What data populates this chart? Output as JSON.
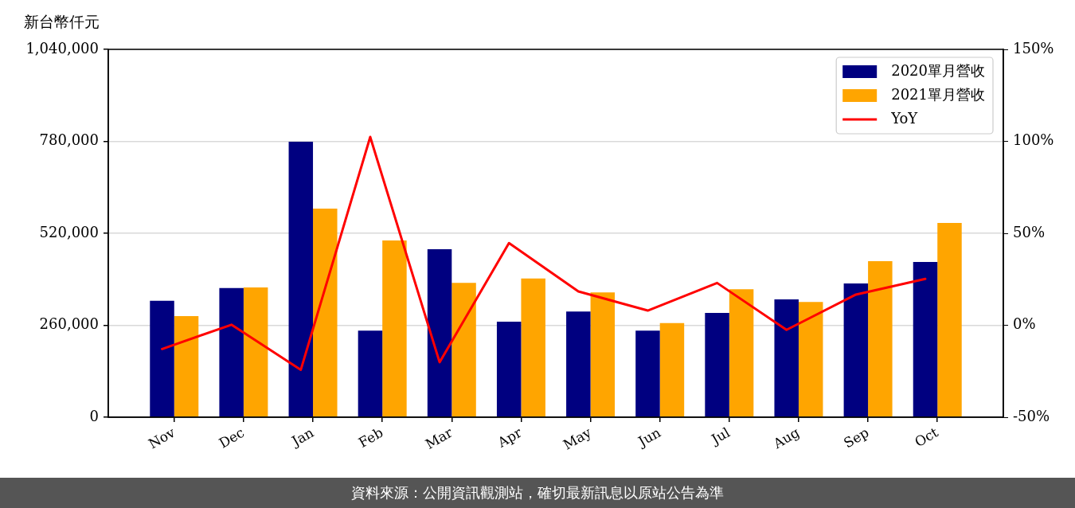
{
  "chart_data": {
    "type": "bar",
    "ylabel": "新台幣仟元",
    "categories": [
      "Nov",
      "Dec",
      "Jan",
      "Feb",
      "Mar",
      "Apr",
      "May",
      "Jun",
      "Jul",
      "Aug",
      "Sep",
      "Oct"
    ],
    "series": [
      {
        "name": "2020單月營收",
        "color": "#000080",
        "values": [
          329000,
          365000,
          779000,
          245000,
          475000,
          270000,
          299000,
          245000,
          295000,
          333000,
          378000,
          439000
        ]
      },
      {
        "name": "2021單月營收",
        "color": "#ffa500",
        "values": [
          286000,
          367000,
          590000,
          500000,
          380000,
          392000,
          353000,
          266000,
          362000,
          326000,
          441000,
          549000
        ]
      },
      {
        "name": "YoY",
        "type": "line",
        "axis": "y2",
        "color": "#ff0000",
        "values": [
          -12.9,
          0.3,
          -24.2,
          102.4,
          -20.1,
          44.7,
          18.4,
          8.0,
          23.0,
          -2.5,
          16.7,
          25.2
        ]
      }
    ],
    "ylim": [
      0,
      1040000
    ],
    "yticks": [
      0,
      {
        "value": 260000,
        "label": "260,000"
      },
      {
        "value": 520000,
        "label": "520,000"
      },
      {
        "value": 780000,
        "label": "780,000"
      },
      {
        "value": 1040000,
        "label": "1,040,000"
      }
    ],
    "y2lim": [
      -50,
      150
    ],
    "y2ticks": [
      {
        "value": -50,
        "label": "-50%"
      },
      {
        "value": 0,
        "label": "0%"
      },
      {
        "value": 50,
        "label": "50%"
      },
      {
        "value": 100,
        "label": "100%"
      },
      {
        "value": 150,
        "label": "150%"
      }
    ],
    "grid": "y",
    "legend": "top right",
    "annotations": [
      "資料來源：公開資訊觀測站，確切最新訊息以原站公告為準"
    ]
  }
}
